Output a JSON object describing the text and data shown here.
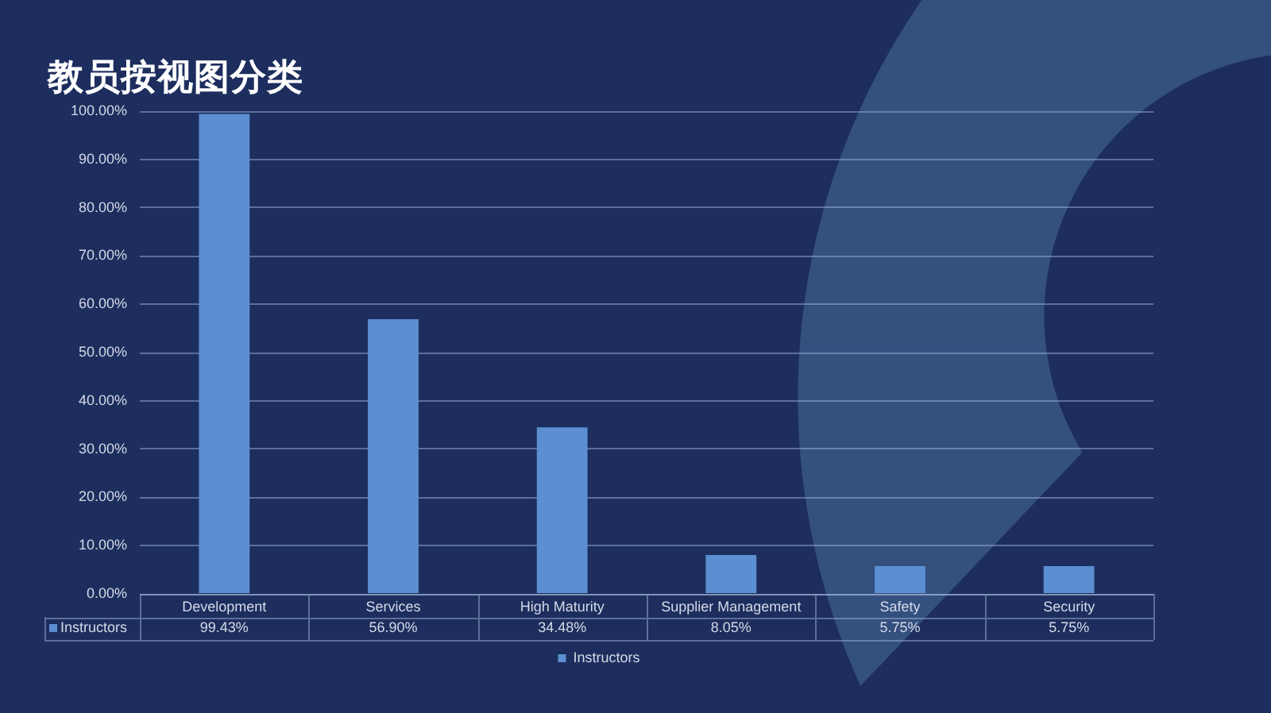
{
  "chart_data": {
    "type": "bar",
    "title": "教员按视图分类",
    "categories": [
      "Development",
      "Services",
      "High Maturity",
      "Supplier Management",
      "Safety",
      "Security"
    ],
    "series": [
      {
        "name": "Instructors",
        "color": "#5b8fd1",
        "values": [
          99.43,
          56.9,
          34.48,
          8.05,
          5.75,
          5.75
        ],
        "value_labels": [
          "99.43%",
          "56.90%",
          "34.48%",
          "8.05%",
          "5.75%",
          "5.75%"
        ]
      }
    ],
    "ylim": [
      0,
      100
    ],
    "yticks": [
      {
        "value": 0,
        "label": "0.00%"
      },
      {
        "value": 10,
        "label": "10.00%"
      },
      {
        "value": 20,
        "label": "20.00%"
      },
      {
        "value": 30,
        "label": "30.00%"
      },
      {
        "value": 40,
        "label": "40.00%"
      },
      {
        "value": 50,
        "label": "50.00%"
      },
      {
        "value": 60,
        "label": "60.00%"
      },
      {
        "value": 70,
        "label": "70.00%"
      },
      {
        "value": 80,
        "label": "80.00%"
      },
      {
        "value": 90,
        "label": "90.00%"
      },
      {
        "value": 100,
        "label": "100.00%"
      }
    ],
    "grid": "y",
    "legend": "bottom"
  }
}
